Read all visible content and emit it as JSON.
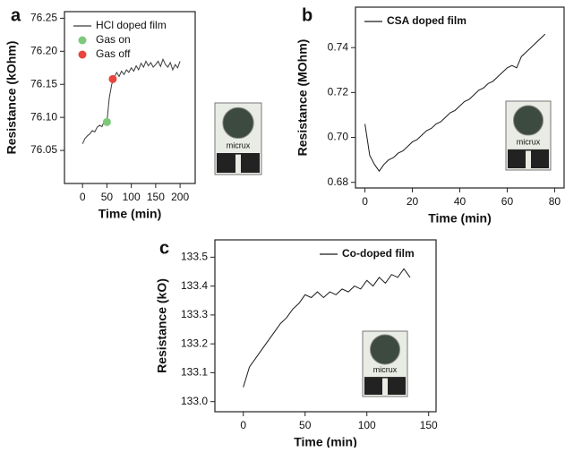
{
  "chart_data": [
    {
      "type": "line",
      "panel_label": "a",
      "xlabel": "Time (min)",
      "ylabel": "Resistance (kOhm)",
      "inset_text": "micrux",
      "legend": "upper left",
      "xlim": [
        -37,
        231
      ],
      "ylim": [
        76.0,
        76.26
      ],
      "xticks": [
        0,
        50,
        100,
        150,
        200
      ],
      "yticks": [
        76.05,
        {
          "value": 76.1,
          "label": "76.10"
        },
        76.15,
        {
          "value": 76.2,
          "label": "76.20"
        },
        76.25
      ],
      "x": [
        0,
        5,
        10,
        15,
        20,
        25,
        30,
        35,
        40,
        45,
        50,
        55,
        60,
        65,
        70,
        75,
        80,
        85,
        90,
        95,
        100,
        105,
        110,
        115,
        120,
        125,
        130,
        135,
        140,
        145,
        150,
        155,
        160,
        165,
        170,
        175,
        180,
        185,
        190,
        195,
        200
      ],
      "series": [
        {
          "name": "HCl doped film",
          "color": "#3a3a3a",
          "values": [
            76.06,
            76.068,
            76.072,
            76.075,
            76.08,
            76.078,
            76.085,
            76.088,
            76.086,
            76.095,
            76.093,
            76.13,
            76.15,
            76.16,
            76.168,
            76.162,
            76.17,
            76.165,
            76.172,
            76.168,
            76.175,
            76.17,
            76.178,
            76.172,
            76.182,
            76.176,
            76.185,
            76.178,
            76.183,
            76.176,
            76.18,
            76.185,
            76.177,
            76.188,
            76.18,
            76.176,
            76.183,
            76.172,
            76.18,
            76.175,
            76.185
          ]
        }
      ],
      "markers": [
        {
          "name": "Gas on",
          "color": "#7dc97a",
          "x": 50,
          "y": 76.093
        },
        {
          "name": "Gas off",
          "color": "#e8453c",
          "x": 62,
          "y": 76.158
        }
      ]
    },
    {
      "type": "line",
      "panel_label": "b",
      "xlabel": "Time (min)",
      "ylabel": "Resistance (MOhm)",
      "inset_text": "micrux",
      "legend": "upper left",
      "xlim": [
        -4,
        84
      ],
      "ylim": [
        0.6775,
        0.758
      ],
      "xticks": [
        0,
        20,
        40,
        60,
        80
      ],
      "yticks": [
        0.68,
        {
          "value": 0.7,
          "label": "0.70"
        },
        0.72,
        0.74
      ],
      "x": [
        0,
        2,
        4,
        6,
        8,
        10,
        12,
        14,
        16,
        18,
        20,
        22,
        24,
        26,
        28,
        30,
        32,
        34,
        36,
        38,
        40,
        42,
        44,
        46,
        48,
        50,
        52,
        54,
        56,
        58,
        60,
        62,
        64,
        66,
        68,
        70,
        72,
        74,
        76
      ],
      "series": [
        {
          "name": "CSA doped film",
          "color": "#1a1a1a",
          "values": [
            0.706,
            0.692,
            0.688,
            0.685,
            0.688,
            0.69,
            0.691,
            0.693,
            0.694,
            0.696,
            0.698,
            0.699,
            0.701,
            0.703,
            0.704,
            0.706,
            0.707,
            0.709,
            0.711,
            0.712,
            0.714,
            0.716,
            0.717,
            0.719,
            0.721,
            0.722,
            0.724,
            0.725,
            0.727,
            0.729,
            0.731,
            0.732,
            0.731,
            0.736,
            0.738,
            0.74,
            0.742,
            0.744,
            0.746
          ]
        }
      ],
      "markers": []
    },
    {
      "type": "line",
      "panel_label": "c",
      "xlabel": "Time (min)",
      "ylabel": "Resistance (kO)",
      "inset_text": "micrux",
      "legend": "upper right",
      "xlim": [
        -23,
        156
      ],
      "ylim": [
        132.965,
        133.56
      ],
      "xticks": [
        0,
        50,
        100,
        150
      ],
      "yticks": [
        {
          "value": 133,
          "label": "133.0"
        },
        133.1,
        133.2,
        133.3,
        133.4,
        133.5
      ],
      "x": [
        0,
        5,
        10,
        15,
        20,
        25,
        30,
        35,
        40,
        45,
        50,
        55,
        60,
        65,
        70,
        75,
        80,
        85,
        90,
        95,
        100,
        105,
        110,
        115,
        120,
        125,
        130,
        135
      ],
      "series": [
        {
          "name": "Co-doped film",
          "color": "#1a1a1a",
          "values": [
            133.05,
            133.12,
            133.15,
            133.18,
            133.21,
            133.24,
            133.27,
            133.29,
            133.32,
            133.34,
            133.37,
            133.36,
            133.38,
            133.36,
            133.38,
            133.37,
            133.39,
            133.38,
            133.4,
            133.39,
            133.42,
            133.4,
            133.43,
            133.41,
            133.44,
            133.43,
            133.46,
            133.43
          ]
        }
      ],
      "markers": []
    }
  ]
}
